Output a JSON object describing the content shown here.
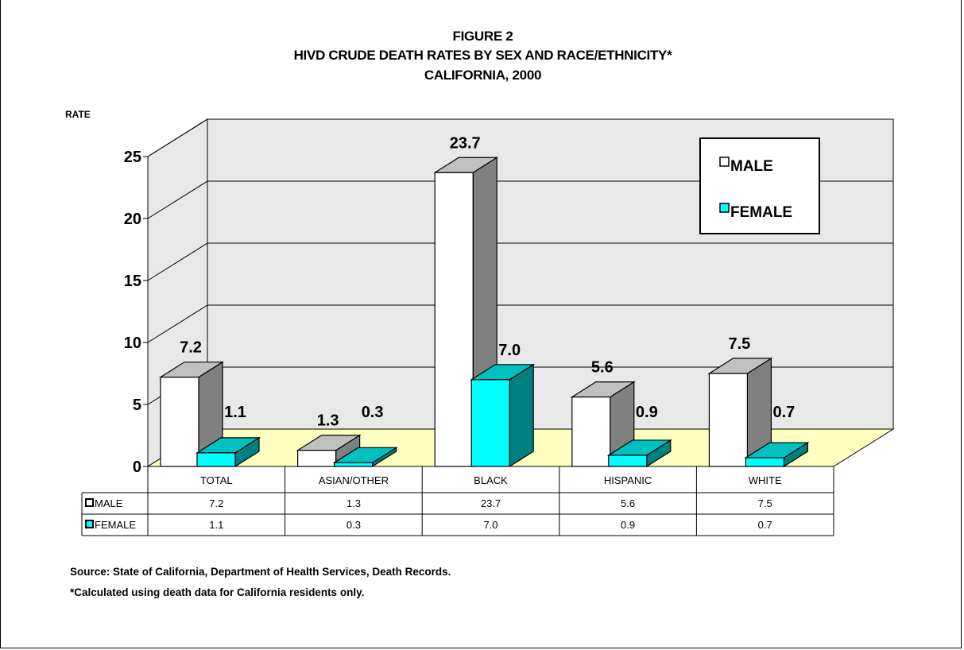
{
  "figure_label": "FIGURE 2",
  "colors": {
    "male": "#ffffff",
    "male_side": "#808080",
    "female": "#00ffff",
    "female_side": "#008080",
    "floor": "#ffffc0",
    "wall": "#e8e8e8"
  },
  "chart_data": {
    "type": "bar",
    "title": "HIVD CRUDE DEATH RATES BY SEX AND RACE/ETHNICITY*",
    "subtitle": "CALIFORNIA, 2000",
    "ylabel": "RATE",
    "xlabel": "",
    "ylim": [
      0,
      25
    ],
    "yticks": [
      "0",
      "5",
      "10",
      "15",
      "20",
      "25"
    ],
    "grid": true,
    "legend_placement": "top-right",
    "categories": [
      "TOTAL",
      "ASIAN/OTHER",
      "BLACK",
      "HISPANIC",
      "WHITE"
    ],
    "series": [
      {
        "name": "MALE",
        "values": [
          7.2,
          1.3,
          23.7,
          5.6,
          7.5
        ],
        "labels": [
          "7.2",
          "1.3",
          "23.7",
          "5.6",
          "7.5"
        ]
      },
      {
        "name": "FEMALE",
        "values": [
          1.1,
          0.3,
          7.0,
          0.9,
          0.7
        ],
        "labels": [
          "1.1",
          "0.3",
          "7.0",
          "0.9",
          "0.7"
        ]
      }
    ]
  },
  "notes": {
    "source": "Source:  State of California, Department of Health Services, Death Records.",
    "footnote": "*Calculated using death data for California residents only."
  }
}
